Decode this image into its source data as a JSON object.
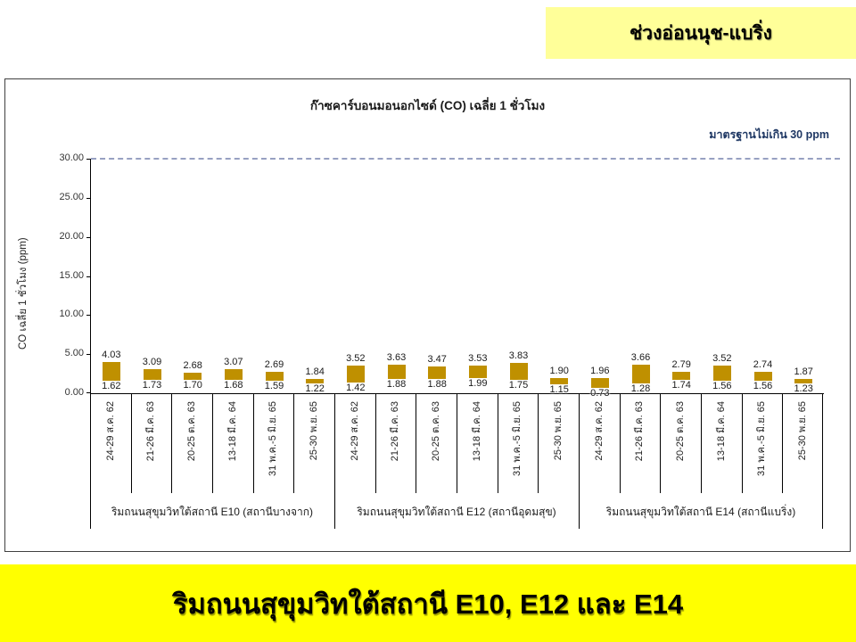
{
  "top_banner": {
    "text": "ช่วงอ่อนนุช-แบริ่ง",
    "bg": "#FFFF99"
  },
  "bottom_banner": {
    "text": "ริมถนนสุขุมวิทใต้สถานี E10, E12 และ E14",
    "bg": "#FFFF00"
  },
  "chart_data": {
    "type": "bar",
    "subtype": "floating-range",
    "title": "ก๊าซคาร์บอนมอนอกไซด์ (CO) เฉลี่ย 1 ชั่วโมง",
    "ylabel": "CO เฉลี่ย 1 ชั่วโมง (ppm)",
    "ylim": [
      0,
      30
    ],
    "yticks": [
      "0.00",
      "5.00",
      "10.00",
      "15.00",
      "20.00",
      "25.00",
      "30.00"
    ],
    "grid": false,
    "standard_line": {
      "value": 30,
      "label": "มาตรฐานไม่เกิน 30 ppm",
      "color": "#1F3864",
      "style": "dashed"
    },
    "bar_color": "#BF9000",
    "value_labels": "min below bar, max above bar, 2 decimals",
    "groups": [
      {
        "label": "ริมถนนสุขุมวิทใต้สถานี E10 (สถานีบางจาก)",
        "categories": [
          "24-29 ส.ค. 62",
          "21-26 มี.ค. 63",
          "20-25 ต.ค. 63",
          "13-18 มี.ค. 64",
          "31 พ.ค.-5 มิ.ย. 65",
          "25-30 พ.ย. 65"
        ],
        "ranges": [
          [
            1.62,
            4.03
          ],
          [
            1.73,
            3.09
          ],
          [
            1.7,
            2.68
          ],
          [
            1.68,
            3.07
          ],
          [
            1.59,
            2.69
          ],
          [
            1.22,
            1.84
          ]
        ]
      },
      {
        "label": "ริมถนนสุขุมวิทใต้สถานี E12 (สถานีอุดมสุข)",
        "categories": [
          "24-29 ส.ค. 62",
          "21-26 มี.ค. 63",
          "20-25 ต.ค. 63",
          "13-18 มี.ค. 64",
          "31 พ.ค.-5 มิ.ย. 65",
          "25-30 พ.ย. 65"
        ],
        "ranges": [
          [
            1.42,
            3.52
          ],
          [
            1.88,
            3.63
          ],
          [
            1.88,
            3.47
          ],
          [
            1.99,
            3.53
          ],
          [
            1.75,
            3.83
          ],
          [
            1.15,
            1.9
          ]
        ]
      },
      {
        "label": "ริมถนนสุขุมวิทใต้สถานี E14 (สถานีแบริ่ง)",
        "categories": [
          "24-29 ส.ค. 62",
          "21-26 มี.ค. 63",
          "20-25 ต.ค. 63",
          "13-18 มี.ค. 64",
          "31 พ.ค.-5 มิ.ย. 65",
          "25-30 พ.ย. 65"
        ],
        "ranges": [
          [
            0.73,
            1.96
          ],
          [
            1.28,
            3.66
          ],
          [
            1.74,
            2.79
          ],
          [
            1.56,
            3.52
          ],
          [
            1.56,
            2.74
          ],
          [
            1.23,
            1.87
          ]
        ]
      }
    ]
  }
}
